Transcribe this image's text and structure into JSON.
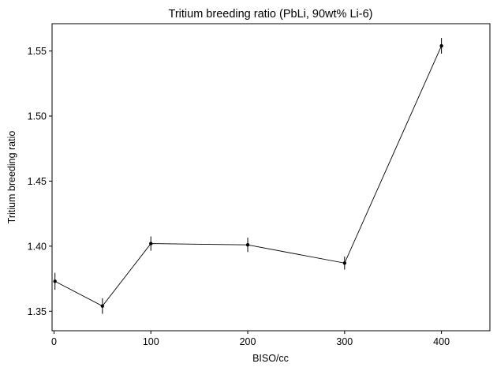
{
  "chart_data": {
    "type": "line",
    "title": "Tritium breeding ratio (PbLi, 90wt% Li-6)",
    "xlabel": "BISO/cc",
    "ylabel": "Tritium breeding ratio",
    "xlim": [
      -2,
      450
    ],
    "ylim": [
      1.335,
      1.571
    ],
    "xticks": [
      0,
      100,
      200,
      300,
      400
    ],
    "xtick_labels": [
      "0",
      "100",
      "200",
      "300",
      "400"
    ],
    "yticks": [
      1.35,
      1.4,
      1.45,
      1.5,
      1.55
    ],
    "ytick_labels": [
      "1.35",
      "1.40",
      "1.45",
      "1.50",
      "1.55"
    ],
    "grid": false,
    "series": [
      {
        "x": [
          1,
          50,
          100,
          200,
          300,
          400
        ],
        "y": [
          1.373,
          1.354,
          1.402,
          1.401,
          1.387,
          1.554
        ],
        "yerr": [
          0.0065,
          0.006,
          0.0055,
          0.0055,
          0.005,
          0.006
        ]
      }
    ],
    "colors": {
      "line": "#000000",
      "axes": "#000000",
      "background": "#ffffff"
    }
  }
}
